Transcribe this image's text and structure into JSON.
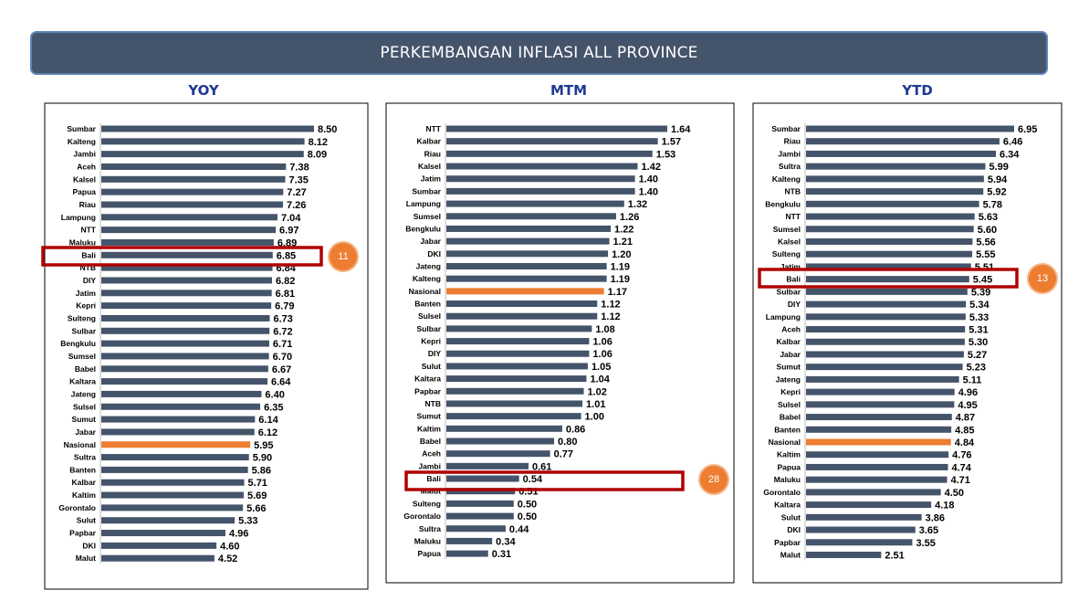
{
  "header": {
    "title": "PERKEMBANGAN INFLASI ALL PROVINCE"
  },
  "colors": {
    "bar": "#44546a",
    "highlight_bar": "#ed7d31",
    "callout_box": "#b00000",
    "badge": "#ed7d31"
  },
  "chart_data": [
    {
      "type": "bar",
      "orientation": "horizontal",
      "title": "YOY",
      "highlight_category": "Nasional",
      "callout": {
        "category": "Bali",
        "rank": "11"
      },
      "categories": [
        "Sumbar",
        "Kalteng",
        "Jambi",
        "Aceh",
        "Kalsel",
        "Papua",
        "Riau",
        "Lampung",
        "NTT",
        "Maluku",
        "Bali",
        "NTB",
        "DIY",
        "Jatim",
        "Kepri",
        "Sulteng",
        "Sulbar",
        "Bengkulu",
        "Sumsel",
        "Babel",
        "Kaltara",
        "Jateng",
        "Sulsel",
        "Sumut",
        "Jabar",
        "Nasional",
        "Sultra",
        "Banten",
        "Kalbar",
        "Kaltim",
        "Gorontalo",
        "Sulut",
        "Papbar",
        "DKI",
        "Malut"
      ],
      "values": [
        8.5,
        8.12,
        8.09,
        7.38,
        7.35,
        7.27,
        7.26,
        7.04,
        6.97,
        6.89,
        6.85,
        6.84,
        6.82,
        6.81,
        6.79,
        6.73,
        6.72,
        6.71,
        6.7,
        6.67,
        6.64,
        6.4,
        6.35,
        6.14,
        6.12,
        5.95,
        5.9,
        5.86,
        5.71,
        5.69,
        5.66,
        5.33,
        4.96,
        4.6,
        4.52
      ]
    },
    {
      "type": "bar",
      "orientation": "horizontal",
      "title": "MTM",
      "highlight_category": "Nasional",
      "callout": {
        "category": "Bali",
        "rank": "28"
      },
      "categories": [
        "NTT",
        "Kalbar",
        "Riau",
        "Kalsel",
        "Jatim",
        "Sumbar",
        "Lampung",
        "Sumsel",
        "Bengkulu",
        "Jabar",
        "DKI",
        "Jateng",
        "Kalteng",
        "Nasional",
        "Banten",
        "Sulsel",
        "Sulbar",
        "Kepri",
        "DIY",
        "Sulut",
        "Kaltara",
        "Papbar",
        "NTB",
        "Sumut",
        "Kaltim",
        "Babel",
        "Aceh",
        "Jambi",
        "Bali",
        "Malut",
        "Sulteng",
        "Gorontalo",
        "Sultra",
        "Maluku",
        "Papua"
      ],
      "values": [
        1.64,
        1.57,
        1.53,
        1.42,
        1.4,
        1.4,
        1.32,
        1.26,
        1.22,
        1.21,
        1.2,
        1.19,
        1.19,
        1.17,
        1.12,
        1.12,
        1.08,
        1.06,
        1.06,
        1.05,
        1.04,
        1.02,
        1.01,
        1.0,
        0.86,
        0.8,
        0.77,
        0.61,
        0.54,
        0.51,
        0.5,
        0.5,
        0.44,
        0.34,
        0.31
      ]
    },
    {
      "type": "bar",
      "orientation": "horizontal",
      "title": "YTD",
      "highlight_category": "Nasional",
      "callout": {
        "category": "Bali",
        "rank": "13"
      },
      "categories": [
        "Sumbar",
        "Riau",
        "Jambi",
        "Sultra",
        "Kalteng",
        "NTB",
        "Bengkulu",
        "NTT",
        "Sumsel",
        "Kalsel",
        "Sulteng",
        "Jatim",
        "Bali",
        "Sulbar",
        "DIY",
        "Lampung",
        "Aceh",
        "Kalbar",
        "Jabar",
        "Sumut",
        "Jateng",
        "Kepri",
        "Sulsel",
        "Babel",
        "Banten",
        "Nasional",
        "Kaltim",
        "Papua",
        "Maluku",
        "Gorontalo",
        "Kaltara",
        "Sulut",
        "DKI",
        "Papbar",
        "Malut"
      ],
      "values": [
        6.95,
        6.46,
        6.34,
        5.99,
        5.94,
        5.92,
        5.78,
        5.63,
        5.6,
        5.56,
        5.55,
        5.51,
        5.45,
        5.39,
        5.34,
        5.33,
        5.31,
        5.3,
        5.27,
        5.23,
        5.11,
        4.96,
        4.95,
        4.87,
        4.85,
        4.84,
        4.76,
        4.74,
        4.71,
        4.5,
        4.18,
        3.86,
        3.65,
        3.55,
        2.51
      ]
    }
  ]
}
